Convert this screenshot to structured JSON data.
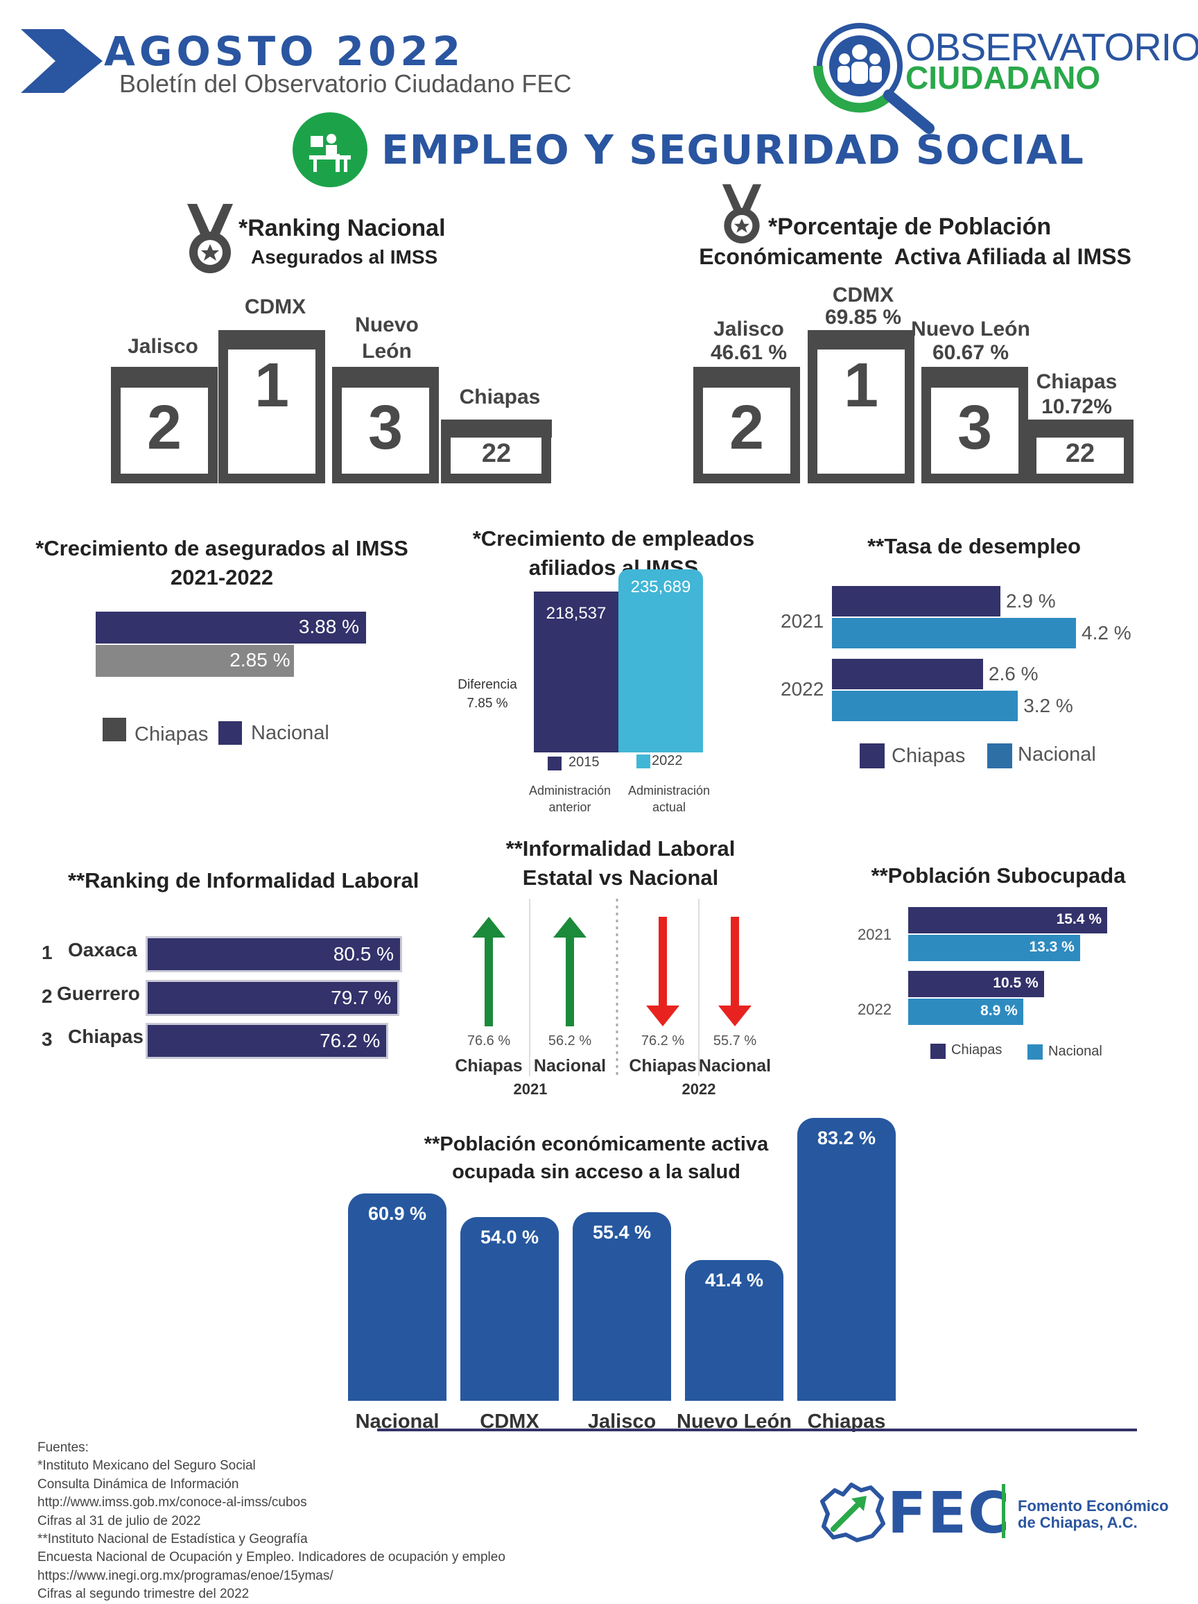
{
  "header": {
    "month_year": "AGOSTO  2022",
    "subtitle": "Boletín del Observatorio Ciudadano FEC",
    "logo_line1": "OBSERVATORIO",
    "logo_line2": "CIUDADANO",
    "section_title": "EMPLEO Y SEGURIDAD SOCIAL"
  },
  "ranking_imss": {
    "title": "*Ranking Nacional",
    "subtitle": "Asegurados al IMSS",
    "podium": [
      {
        "state": "Jalisco",
        "rank": "2"
      },
      {
        "state": "CDMX",
        "rank": "1"
      },
      {
        "state": "Nuevo León",
        "rank": "3"
      },
      {
        "state": "Chiapas",
        "rank": "22"
      }
    ]
  },
  "pea_imss": {
    "title": "*Porcentaje de Población",
    "subtitle": "Económicamente  Activa Afiliada al IMSS",
    "podium": [
      {
        "state": "Jalisco",
        "pct": "46.61 %",
        "rank": "2"
      },
      {
        "state": "CDMX",
        "pct": "69.85 %",
        "rank": "1"
      },
      {
        "state": "Nuevo León",
        "pct": "60.67 %",
        "rank": "3"
      },
      {
        "state": "Chiapas",
        "pct": "10.72%",
        "rank": "22"
      }
    ]
  },
  "colors": {
    "navy": "#33326b",
    "blue": "#2a55a0",
    "steel": "#2e8bc0",
    "cyan": "#41b6d6",
    "gray": "#878787",
    "dark_gray": "#4a4a4a",
    "green": "#1b8a3a",
    "red": "#e8231f"
  },
  "chart_data": [
    {
      "type": "bar",
      "title": "*Crecimiento de asegurados al IMSS 2021-2022",
      "series": [
        {
          "name": "Nacional",
          "values": [
            3.88
          ],
          "label": "3.88 %"
        },
        {
          "name": "Chiapas",
          "values": [
            2.85
          ],
          "label": "2.85 %"
        }
      ],
      "legend": [
        "Chiapas",
        "Nacional"
      ]
    },
    {
      "type": "bar",
      "title": "*Crecimiento de empleados afiliados al IMSS",
      "categories": [
        "2015",
        "2022"
      ],
      "values": [
        218537,
        235689
      ],
      "value_labels": [
        "218,537",
        "235,689"
      ],
      "category_notes": [
        "Administración anterior",
        "Administración actual"
      ],
      "annotation": "Diferencia 7.85 %"
    },
    {
      "type": "bar",
      "title": "**Tasa de desempleo",
      "categories": [
        "2021",
        "2022"
      ],
      "series": [
        {
          "name": "Chiapas",
          "values": [
            2.9,
            2.6
          ],
          "labels": [
            "2.9 %",
            "2.6 %"
          ]
        },
        {
          "name": "Nacional",
          "values": [
            4.2,
            3.2
          ],
          "labels": [
            "4.2 %",
            "3.2 %"
          ]
        }
      ]
    },
    {
      "type": "bar",
      "title": "**Ranking de Informalidad Laboral",
      "categories": [
        "Oaxaca",
        "Guerrero",
        "Chiapas"
      ],
      "ranks": [
        "1",
        "2",
        "3"
      ],
      "values": [
        80.5,
        79.7,
        76.2
      ],
      "labels": [
        "80.5 %",
        "79.7 %",
        "76.2 %"
      ]
    },
    {
      "type": "table",
      "title": "**Informalidad Laboral Estatal vs Nacional",
      "groups": [
        {
          "year": "2021",
          "items": [
            {
              "name": "Chiapas",
              "value": 76.6,
              "label": "76.6 %",
              "direction": "up"
            },
            {
              "name": "Nacional",
              "value": 56.2,
              "label": "56.2 %",
              "direction": "up"
            }
          ]
        },
        {
          "year": "2022",
          "items": [
            {
              "name": "Chiapas",
              "value": 76.2,
              "label": "76.2 %",
              "direction": "down"
            },
            {
              "name": "Nacional",
              "value": 55.7,
              "label": "55.7 %",
              "direction": "down"
            }
          ]
        }
      ]
    },
    {
      "type": "bar",
      "title": "**Población Subocupada",
      "categories": [
        "2021",
        "2022"
      ],
      "series": [
        {
          "name": "Chiapas",
          "values": [
            15.4,
            10.5
          ],
          "labels": [
            "15.4 %",
            "10.5 %"
          ]
        },
        {
          "name": "Nacional",
          "values": [
            13.3,
            8.9
          ],
          "labels": [
            "13.3 %",
            "8.9 %"
          ]
        }
      ]
    },
    {
      "type": "bar",
      "title": "**Población económicamente activa ocupada sin acceso a la salud",
      "categories": [
        "Nacional",
        "CDMX",
        "Jalisco",
        "Nuevo León",
        "Chiapas"
      ],
      "values": [
        60.9,
        54.0,
        55.4,
        41.4,
        83.2
      ],
      "labels": [
        "60.9 %",
        "54.0 %",
        "55.4 %",
        "41.4 %",
        "83.2 %"
      ]
    }
  ],
  "sources": [
    "Fuentes:",
    "*Instituto Mexicano del Seguro Social",
    "Consulta Dinámica de Información",
    "http://www.imss.gob.mx/conoce-al-imss/cubos",
    "Cifras al 31 de julio de 2022",
    "**Instituto Nacional de Estadística y Geografía",
    "Encuesta Nacional de Ocupación y Empleo. Indicadores de ocupación y empleo",
    "https://www.inegi.org.mx/programas/enoe/15ymas/",
    "Cifras al segundo trimestre del 2022"
  ],
  "footer_logo": {
    "name": "FEC",
    "line1": "Fomento Económico",
    "line2": "de Chiapas, A.C."
  }
}
